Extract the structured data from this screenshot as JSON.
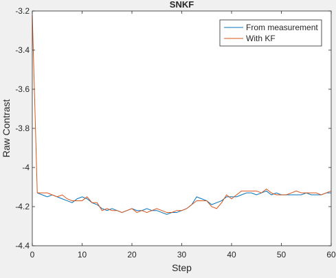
{
  "chart_data": {
    "type": "line",
    "title": "SNKF",
    "xlabel": "Step",
    "ylabel": "Raw Contrast",
    "xlim": [
      0,
      60
    ],
    "ylim": [
      -4.4,
      -3.2
    ],
    "xticks": [
      0,
      10,
      20,
      30,
      40,
      50,
      60
    ],
    "xtick_labels": [
      "0",
      "10",
      "20",
      "30",
      "40",
      "50",
      "60"
    ],
    "yticks": [
      -4.4,
      -4.2,
      -4.0,
      -3.8,
      -3.6,
      -3.4,
      -3.2
    ],
    "ytick_labels": [
      "-4.4",
      "-4.2",
      "-4",
      "-3.8",
      "-3.6",
      "-3.4",
      "-3.2"
    ],
    "grid": false,
    "legend_position": "top-right",
    "series": [
      {
        "name": "From measurement",
        "color": "#0072BD",
        "x": [
          1,
          2,
          3,
          4,
          5,
          6,
          7,
          8,
          9,
          10,
          11,
          12,
          13,
          14,
          15,
          16,
          17,
          18,
          19,
          20,
          21,
          22,
          23,
          24,
          25,
          26,
          27,
          28,
          29,
          30,
          31,
          32,
          33,
          34,
          35,
          36,
          37,
          38,
          39,
          40,
          41,
          42,
          43,
          44,
          45,
          46,
          47,
          48,
          49,
          50,
          51,
          52,
          53,
          54,
          55,
          56,
          57,
          58,
          59,
          60
        ],
        "y": [
          -4.13,
          -4.14,
          -4.15,
          -4.14,
          -4.15,
          -4.16,
          -4.17,
          -4.18,
          -4.16,
          -4.15,
          -4.16,
          -4.18,
          -4.19,
          -4.21,
          -4.22,
          -4.21,
          -4.22,
          -4.23,
          -4.22,
          -4.21,
          -4.22,
          -4.22,
          -4.21,
          -4.22,
          -4.22,
          -4.23,
          -4.24,
          -4.23,
          -4.23,
          -4.22,
          -4.21,
          -4.19,
          -4.15,
          -4.16,
          -4.17,
          -4.19,
          -4.18,
          -4.17,
          -4.15,
          -4.15,
          -4.15,
          -4.14,
          -4.13,
          -4.13,
          -4.14,
          -4.13,
          -4.12,
          -4.14,
          -4.13,
          -4.14,
          -4.14,
          -4.14,
          -4.14,
          -4.14,
          -4.13,
          -4.14,
          -4.14,
          -4.14,
          -4.13,
          -4.13
        ]
      },
      {
        "name": "With KF",
        "color": "#D95319",
        "x": [
          0,
          1,
          2,
          3,
          4,
          5,
          6,
          7,
          8,
          9,
          10,
          11,
          12,
          13,
          14,
          15,
          16,
          17,
          18,
          19,
          20,
          21,
          22,
          23,
          24,
          25,
          26,
          27,
          28,
          29,
          30,
          31,
          32,
          33,
          34,
          35,
          36,
          37,
          38,
          39,
          40,
          41,
          42,
          43,
          44,
          45,
          46,
          47,
          48,
          49,
          50,
          51,
          52,
          53,
          54,
          55,
          56,
          57,
          58,
          59,
          60
        ],
        "y": [
          -3.22,
          -4.13,
          -4.13,
          -4.13,
          -4.14,
          -4.15,
          -4.14,
          -4.16,
          -4.17,
          -4.17,
          -4.17,
          -4.15,
          -4.18,
          -4.18,
          -4.22,
          -4.21,
          -4.22,
          -4.22,
          -4.23,
          -4.22,
          -4.21,
          -4.23,
          -4.22,
          -4.23,
          -4.22,
          -4.21,
          -4.22,
          -4.23,
          -4.23,
          -4.22,
          -4.22,
          -4.21,
          -4.19,
          -4.17,
          -4.17,
          -4.17,
          -4.2,
          -4.21,
          -4.18,
          -4.14,
          -4.16,
          -4.14,
          -4.12,
          -4.12,
          -4.12,
          -4.12,
          -4.13,
          -4.11,
          -4.13,
          -4.14,
          -4.14,
          -4.14,
          -4.13,
          -4.12,
          -4.13,
          -4.13,
          -4.13,
          -4.13,
          -4.14,
          -4.13,
          -4.12
        ]
      }
    ]
  }
}
